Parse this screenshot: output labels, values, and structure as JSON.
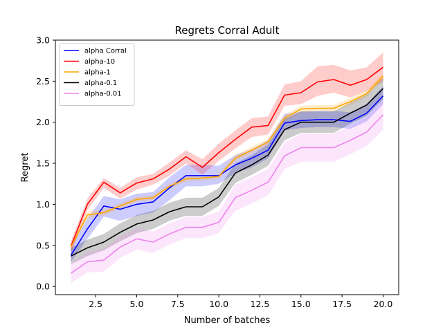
{
  "chart_data": {
    "type": "line",
    "title": "Regrets Corral Adult",
    "xlabel": "Number of batches",
    "ylabel": "Regret",
    "xlim": [
      0.05,
      20.95
    ],
    "ylim": [
      -0.1,
      3.0
    ],
    "xticks": [
      2.5,
      5.0,
      7.5,
      10.0,
      12.5,
      15.0,
      17.5,
      20.0
    ],
    "xtick_labels": [
      "2.5",
      "5.0",
      "7.5",
      "10.0",
      "12.5",
      "15.0",
      "17.5",
      "20.0"
    ],
    "yticks": [
      0.0,
      0.5,
      1.0,
      1.5,
      2.0,
      2.5,
      3.0
    ],
    "ytick_labels": [
      "0.0",
      "0.5",
      "1.0",
      "1.5",
      "2.0",
      "2.5",
      "3.0"
    ],
    "grid": false,
    "legend_position": "top-left",
    "x": [
      1,
      2,
      3,
      4,
      5,
      6,
      7,
      8,
      9,
      10,
      11,
      12,
      13,
      14,
      15,
      16,
      17,
      18,
      19,
      20
    ],
    "series": [
      {
        "name": "alpha Corral",
        "color": "#0000ff",
        "values": [
          0.38,
          0.7,
          0.98,
          0.94,
          1.0,
          1.03,
          1.2,
          1.35,
          1.35,
          1.35,
          1.48,
          1.56,
          1.66,
          1.99,
          2.02,
          2.03,
          2.03,
          2.01,
          2.11,
          2.32
        ],
        "lower": [
          0.3,
          0.58,
          0.85,
          0.8,
          0.86,
          0.9,
          1.05,
          1.22,
          1.22,
          1.25,
          1.38,
          1.45,
          1.56,
          1.9,
          1.93,
          1.94,
          1.94,
          1.92,
          2.01,
          2.22
        ],
        "upper": [
          0.48,
          0.83,
          1.1,
          1.06,
          1.13,
          1.15,
          1.33,
          1.48,
          1.48,
          1.47,
          1.6,
          1.67,
          1.78,
          2.1,
          2.13,
          2.14,
          2.14,
          2.12,
          2.22,
          2.44
        ]
      },
      {
        "name": "alpha-10",
        "color": "#ff0000",
        "values": [
          0.49,
          1.0,
          1.27,
          1.14,
          1.26,
          1.31,
          1.43,
          1.58,
          1.45,
          1.63,
          1.79,
          1.94,
          1.96,
          2.33,
          2.36,
          2.49,
          2.52,
          2.45,
          2.52,
          2.67
        ],
        "lower": [
          0.4,
          0.93,
          1.2,
          1.07,
          1.18,
          1.24,
          1.35,
          1.5,
          1.36,
          1.53,
          1.68,
          1.82,
          1.85,
          2.2,
          2.22,
          2.32,
          2.36,
          2.3,
          2.38,
          2.5
        ],
        "upper": [
          0.55,
          1.07,
          1.32,
          1.2,
          1.33,
          1.37,
          1.51,
          1.66,
          1.55,
          1.74,
          1.9,
          2.05,
          2.07,
          2.46,
          2.5,
          2.68,
          2.7,
          2.63,
          2.67,
          2.85
        ]
      },
      {
        "name": "alpha-1",
        "color": "#ffa500",
        "values": [
          0.48,
          0.87,
          0.9,
          0.98,
          1.06,
          1.08,
          1.22,
          1.31,
          1.32,
          1.34,
          1.56,
          1.66,
          1.76,
          2.05,
          2.16,
          2.17,
          2.17,
          2.25,
          2.35,
          2.56
        ],
        "lower": [
          0.44,
          0.83,
          0.86,
          0.95,
          1.03,
          1.05,
          1.19,
          1.28,
          1.29,
          1.31,
          1.52,
          1.62,
          1.72,
          2.01,
          2.12,
          2.13,
          2.13,
          2.21,
          2.31,
          2.52
        ],
        "upper": [
          0.52,
          0.91,
          0.94,
          1.01,
          1.09,
          1.11,
          1.25,
          1.34,
          1.35,
          1.37,
          1.6,
          1.7,
          1.8,
          2.09,
          2.2,
          2.21,
          2.21,
          2.29,
          2.39,
          2.6
        ]
      },
      {
        "name": "alpha-0.1",
        "color": "#000000",
        "values": [
          0.37,
          0.47,
          0.54,
          0.66,
          0.76,
          0.81,
          0.91,
          0.97,
          0.97,
          1.09,
          1.38,
          1.48,
          1.6,
          1.91,
          2.0,
          2.0,
          2.0,
          2.11,
          2.21,
          2.41
        ],
        "lower": [
          0.27,
          0.37,
          0.44,
          0.55,
          0.65,
          0.7,
          0.8,
          0.86,
          0.86,
          0.98,
          1.26,
          1.36,
          1.47,
          1.78,
          1.87,
          1.87,
          1.87,
          1.98,
          2.08,
          2.28
        ],
        "upper": [
          0.47,
          0.57,
          0.64,
          0.77,
          0.87,
          0.92,
          1.02,
          1.08,
          1.08,
          1.2,
          1.5,
          1.6,
          1.73,
          2.04,
          2.13,
          2.13,
          2.13,
          2.24,
          2.34,
          2.54
        ]
      },
      {
        "name": "alpha-0.01",
        "color": "#ee82ee",
        "values": [
          0.16,
          0.3,
          0.32,
          0.48,
          0.58,
          0.54,
          0.64,
          0.72,
          0.72,
          0.78,
          1.08,
          1.17,
          1.27,
          1.59,
          1.69,
          1.69,
          1.69,
          1.78,
          1.88,
          2.09
        ],
        "lower": [
          0.04,
          0.17,
          0.18,
          0.35,
          0.45,
          0.41,
          0.51,
          0.59,
          0.59,
          0.65,
          0.92,
          1.01,
          1.11,
          1.43,
          1.52,
          1.52,
          1.52,
          1.61,
          1.71,
          1.91
        ],
        "upper": [
          0.28,
          0.42,
          0.46,
          0.61,
          0.71,
          0.67,
          0.77,
          0.85,
          0.85,
          0.91,
          1.24,
          1.33,
          1.43,
          1.75,
          1.86,
          1.86,
          1.86,
          1.95,
          2.05,
          2.27
        ]
      }
    ]
  }
}
